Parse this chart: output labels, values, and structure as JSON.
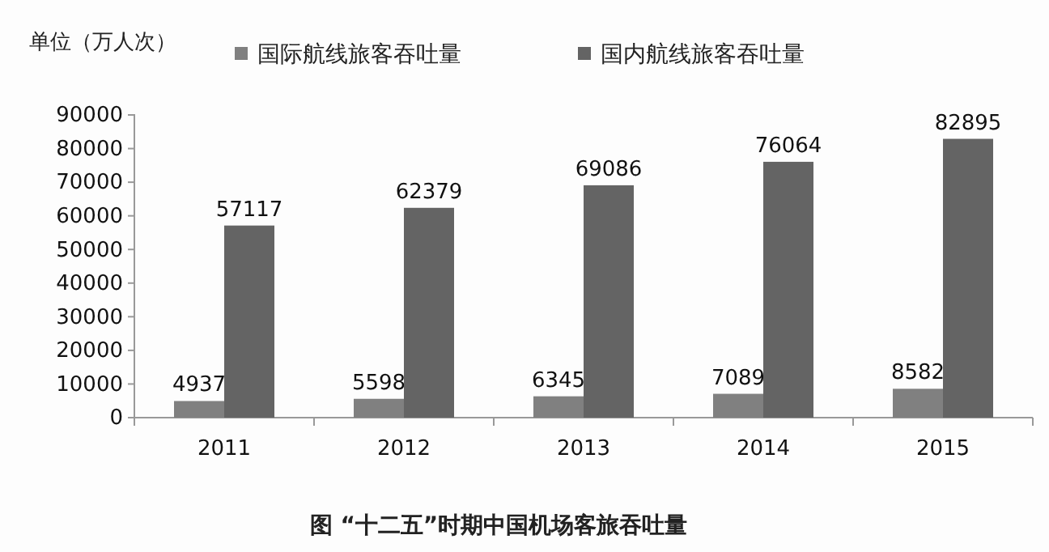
{
  "chart_data": {
    "type": "bar",
    "title": "图 “十二五”时期中国机场客旅吞吐量",
    "ylabel": "单位（万人次）",
    "categories": [
      "2011",
      "2012",
      "2013",
      "2014",
      "2015"
    ],
    "series": [
      {
        "name": "国际航线旅客吞吐量",
        "color": "#808080",
        "values": [
          4937,
          5598,
          6345,
          7089,
          8582
        ]
      },
      {
        "name": "国内航线旅客吞吐量",
        "color": "#646464",
        "values": [
          57117,
          62379,
          69086,
          76064,
          82895
        ]
      }
    ],
    "ylim": [
      0,
      90000
    ],
    "yticks": [
      0,
      10000,
      20000,
      30000,
      40000,
      50000,
      60000,
      70000,
      80000,
      90000
    ],
    "data_labels": true,
    "legend": "top",
    "grid": false
  }
}
